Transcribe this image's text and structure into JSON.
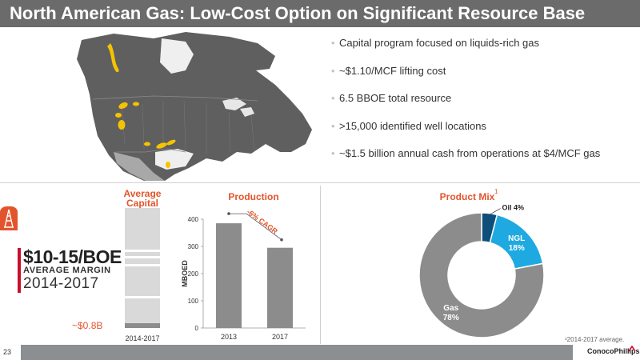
{
  "title": "North American Gas: Low-Cost Option on Significant Resource Base",
  "bullets": [
    "Capital program focused on liquids-rich gas",
    "~$1.10/MCF lifting cost",
    "6.5 BBOE total resource",
    ">15,000 identified well locations",
    "~$1.5 billion annual cash from operations at $4/MCF gas"
  ],
  "margin": {
    "value": "$10-15/BOE",
    "label": "AVERAGE MARGIN",
    "years": "2014-2017"
  },
  "colors": {
    "accent": "#e2552c",
    "brand_red": "#c8102e",
    "bar_gray": "#8c8c8c",
    "light_gray": "#d9d9d9",
    "oil": "#0d4f7a",
    "ngl": "#1fa9e1",
    "gas": "#8c8c8c",
    "map_land": "#5f5f5f",
    "map_area": "#f5c400"
  },
  "icons": {
    "rig": "oil-rig-icon",
    "map": "north-america-map-icon"
  },
  "chart_data": [
    {
      "type": "bar",
      "title": "Average Capital",
      "categories": [
        "2014-2017"
      ],
      "values": [
        0.8
      ],
      "value_label": "~$0.8B"
    },
    {
      "type": "bar",
      "title": "Production",
      "categories": [
        "2013",
        "2017"
      ],
      "values": [
        385,
        295
      ],
      "ylabel": "MBOED",
      "ylim": [
        0,
        400
      ],
      "yticks": [
        0,
        100,
        200,
        300,
        400
      ],
      "annotation": "-6% CAGR",
      "grid": false
    },
    {
      "type": "pie",
      "title": "Product Mix",
      "title_superscript": "1",
      "donut": true,
      "slices": [
        {
          "label": "Oil",
          "value": 4,
          "text": "Oil 4%",
          "color": "#0d4f7a"
        },
        {
          "label": "NGL",
          "value": 18,
          "text": "NGL 18%",
          "color": "#1fa9e1"
        },
        {
          "label": "Gas",
          "value": 78,
          "text": "Gas 78%",
          "color": "#8c8c8c"
        }
      ]
    }
  ],
  "footnote": "¹2014-2017 average.",
  "footer": {
    "page": "23",
    "logo": "ConocoPhillips"
  }
}
